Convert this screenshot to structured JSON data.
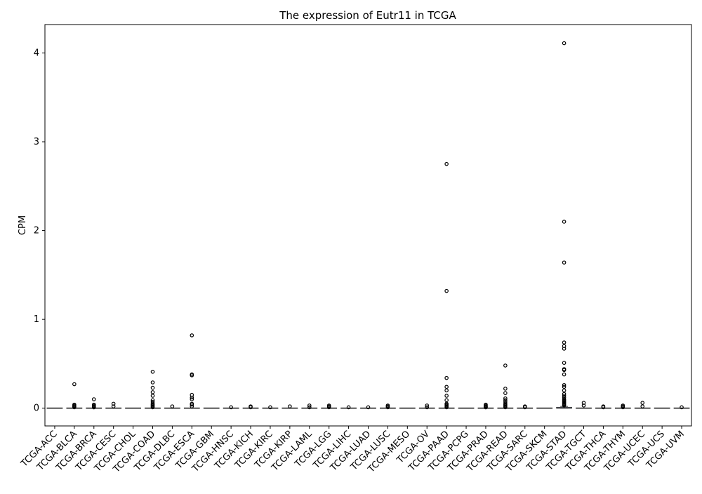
{
  "chart_data": {
    "type": "box",
    "title": "The expression of Eutr11 in TCGA",
    "xlabel": "",
    "ylabel": "CPM",
    "ylim": [
      -0.2,
      4.32
    ],
    "yticks": [
      0,
      1,
      2,
      3,
      4
    ],
    "grid": false,
    "categories": [
      "TCGA-ACC",
      "TCGA-BLCA",
      "TCGA-BRCA",
      "TCGA-CESC",
      "TCGA-CHOL",
      "TCGA-COAD",
      "TCGA-DLBC",
      "TCGA-ESCA",
      "TCGA-GBM",
      "TCGA-HNSC",
      "TCGA-KICH",
      "TCGA-KIRC",
      "TCGA-KIRP",
      "TCGA-LAML",
      "TCGA-LGG",
      "TCGA-LIHC",
      "TCGA-LUAD",
      "TCGA-LUSC",
      "TCGA-MESO",
      "TCGA-OV",
      "TCGA-PAAD",
      "TCGA-PCPG",
      "TCGA-PRAD",
      "TCGA-READ",
      "TCGA-SARC",
      "TCGA-SKCM",
      "TCGA-STAD",
      "TCGA-TGCT",
      "TCGA-THCA",
      "TCGA-THYM",
      "TCGA-UCEC",
      "TCGA-UCS",
      "TCGA-UVM"
    ],
    "box_color": "#4c72b0",
    "boxes": [
      {
        "q1": 0,
        "median": 0,
        "q3": 0,
        "whisker_low": 0,
        "whisker_high": 0,
        "outliers": []
      },
      {
        "q1": 0,
        "median": 0,
        "q3": 0,
        "whisker_low": 0,
        "whisker_high": 0,
        "outliers": [
          0.27,
          0.04,
          0.03,
          0.02,
          0.02,
          0.01
        ]
      },
      {
        "q1": 0,
        "median": 0,
        "q3": 0,
        "whisker_low": 0,
        "whisker_high": 0,
        "outliers": [
          0.1,
          0.04,
          0.03,
          0.02,
          0.02,
          0.01,
          0.01
        ]
      },
      {
        "q1": 0,
        "median": 0,
        "q3": 0,
        "whisker_low": 0,
        "whisker_high": 0,
        "outliers": [
          0.05,
          0.02
        ]
      },
      {
        "q1": 0,
        "median": 0,
        "q3": 0,
        "whisker_low": 0,
        "whisker_high": 0,
        "outliers": []
      },
      {
        "q1": 0,
        "median": 0,
        "q3": 0,
        "whisker_low": 0,
        "whisker_high": 0,
        "outliers": [
          0.41,
          0.29,
          0.23,
          0.18,
          0.14,
          0.09,
          0.07,
          0.05,
          0.04,
          0.03,
          0.02,
          0.01
        ]
      },
      {
        "q1": 0,
        "median": 0,
        "q3": 0,
        "whisker_low": 0,
        "whisker_high": 0,
        "outliers": [
          0.02
        ]
      },
      {
        "q1": 0,
        "median": 0,
        "q3": 0,
        "whisker_low": 0,
        "whisker_high": 0,
        "outliers": [
          0.82,
          0.38,
          0.37,
          0.15,
          0.12,
          0.1,
          0.05,
          0.04,
          0.02
        ]
      },
      {
        "q1": 0,
        "median": 0,
        "q3": 0,
        "whisker_low": 0,
        "whisker_high": 0,
        "outliers": []
      },
      {
        "q1": 0,
        "median": 0,
        "q3": 0,
        "whisker_low": 0,
        "whisker_high": 0,
        "outliers": [
          0.01
        ]
      },
      {
        "q1": 0,
        "median": 0,
        "q3": 0,
        "whisker_low": 0,
        "whisker_high": 0,
        "outliers": [
          0.02,
          0.01
        ]
      },
      {
        "q1": 0,
        "median": 0,
        "q3": 0,
        "whisker_low": 0,
        "whisker_high": 0,
        "outliers": [
          0.01
        ]
      },
      {
        "q1": 0,
        "median": 0,
        "q3": 0,
        "whisker_low": 0,
        "whisker_high": 0,
        "outliers": [
          0.02
        ]
      },
      {
        "q1": 0,
        "median": 0,
        "q3": 0,
        "whisker_low": 0,
        "whisker_high": 0,
        "outliers": [
          0.03,
          0.01
        ]
      },
      {
        "q1": 0,
        "median": 0,
        "q3": 0,
        "whisker_low": 0,
        "whisker_high": 0,
        "outliers": [
          0.03,
          0.02,
          0.01
        ]
      },
      {
        "q1": 0,
        "median": 0,
        "q3": 0,
        "whisker_low": 0,
        "whisker_high": 0,
        "outliers": [
          0.01
        ]
      },
      {
        "q1": 0,
        "median": 0,
        "q3": 0,
        "whisker_low": 0,
        "whisker_high": 0,
        "outliers": [
          0.01
        ]
      },
      {
        "q1": 0,
        "median": 0,
        "q3": 0,
        "whisker_low": 0,
        "whisker_high": 0,
        "outliers": [
          0.03,
          0.02,
          0.01
        ]
      },
      {
        "q1": 0,
        "median": 0,
        "q3": 0,
        "whisker_low": 0,
        "whisker_high": 0,
        "outliers": []
      },
      {
        "q1": 0,
        "median": 0,
        "q3": 0,
        "whisker_low": 0,
        "whisker_high": 0,
        "outliers": [
          0.03,
          0.01
        ]
      },
      {
        "q1": 0,
        "median": 0,
        "q3": 0,
        "whisker_low": 0,
        "whisker_high": 0,
        "outliers": [
          2.75,
          1.32,
          0.34,
          0.24,
          0.2,
          0.14,
          0.09,
          0.05,
          0.04,
          0.03,
          0.02,
          0.01
        ]
      },
      {
        "q1": 0,
        "median": 0,
        "q3": 0,
        "whisker_low": 0,
        "whisker_high": 0,
        "outliers": []
      },
      {
        "q1": 0,
        "median": 0,
        "q3": 0,
        "whisker_low": 0,
        "whisker_high": 0,
        "outliers": [
          0.04,
          0.03,
          0.02,
          0.02,
          0.01,
          0.01
        ]
      },
      {
        "q1": 0,
        "median": 0,
        "q3": 0,
        "whisker_low": 0,
        "whisker_high": 0,
        "outliers": [
          0.48,
          0.22,
          0.17,
          0.11,
          0.09,
          0.07,
          0.05,
          0.04,
          0.03,
          0.02,
          0.01
        ]
      },
      {
        "q1": 0,
        "median": 0,
        "q3": 0,
        "whisker_low": 0,
        "whisker_high": 0,
        "outliers": [
          0.02,
          0.01
        ]
      },
      {
        "q1": 0,
        "median": 0,
        "q3": 0,
        "whisker_low": 0,
        "whisker_high": 0,
        "outliers": []
      },
      {
        "q1": 0,
        "median": 0,
        "q3": 0.01,
        "whisker_low": 0,
        "whisker_high": 0.02,
        "outliers": [
          4.11,
          2.1,
          1.64,
          0.74,
          0.7,
          0.67,
          0.51,
          0.44,
          0.43,
          0.38,
          0.26,
          0.24,
          0.2,
          0.16,
          0.14,
          0.12,
          0.1,
          0.09,
          0.08,
          0.07,
          0.06,
          0.05,
          0.04,
          0.03
        ]
      },
      {
        "q1": 0,
        "median": 0,
        "q3": 0,
        "whisker_low": 0,
        "whisker_high": 0,
        "outliers": [
          0.06,
          0.03
        ]
      },
      {
        "q1": 0,
        "median": 0,
        "q3": 0,
        "whisker_low": 0,
        "whisker_high": 0,
        "outliers": [
          0.02,
          0.01
        ]
      },
      {
        "q1": 0,
        "median": 0,
        "q3": 0,
        "whisker_low": 0,
        "whisker_high": 0,
        "outliers": [
          0.03,
          0.02,
          0.01
        ]
      },
      {
        "q1": 0,
        "median": 0,
        "q3": 0,
        "whisker_low": 0,
        "whisker_high": 0,
        "outliers": [
          0.06,
          0.02
        ]
      },
      {
        "q1": 0,
        "median": 0,
        "q3": 0,
        "whisker_low": 0,
        "whisker_high": 0,
        "outliers": []
      },
      {
        "q1": 0,
        "median": 0,
        "q3": 0,
        "whisker_low": 0,
        "whisker_high": 0,
        "outliers": [
          0.01
        ]
      }
    ]
  }
}
